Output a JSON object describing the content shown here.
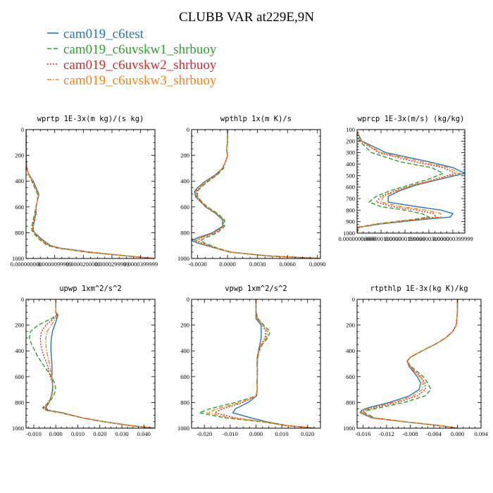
{
  "figure": {
    "title": "CLUBB VAR at229E,9N"
  },
  "legend": [
    {
      "name": "cam019_c6test",
      "color": "#1f77b4",
      "dash": "solid"
    },
    {
      "name": "cam019_c6uvskw1_shrbuoy",
      "color": "#2ca02c",
      "dash": "dashed"
    },
    {
      "name": "cam019_c6uvskw2_shrbuoy",
      "color": "#d62728",
      "dash": "dotted"
    },
    {
      "name": "cam019_c6uvskw3_shrbuoy",
      "color": "#ff7f0e",
      "dash": "dashdot"
    }
  ],
  "chart_data": [
    {
      "type": "line",
      "title": "wprtp  1E-3x(m kg)/(s kg)",
      "xlim": [
        0,
        4.5e-05
      ],
      "xticks": [
        0,
        1e-05,
        2e-05,
        3e-05,
        4e-05
      ],
      "xtick_labels": [
        "0.000000000",
        "0.0000099999",
        "0.0000200000",
        "0.0000299999",
        "0.0000399999"
      ],
      "ylim": [
        1000,
        0
      ],
      "yticks": [
        0,
        200,
        400,
        600,
        800,
        1000
      ],
      "ytick_labels": [
        "0",
        "200",
        "400",
        "600",
        "800",
        "1000"
      ],
      "y": [
        0,
        100,
        200,
        300,
        350,
        400,
        450,
        500,
        550,
        600,
        650,
        700,
        750,
        780,
        800,
        850,
        900,
        920,
        950,
        980,
        1000
      ],
      "series": [
        {
          "values": [
            0,
            0,
            0,
            2e-07,
            1e-06,
            2.5e-06,
            3.5e-06,
            4.5e-06,
            4e-06,
            3.5e-06,
            3.5e-06,
            3e-06,
            2.5e-06,
            2.5e-06,
            3e-06,
            5.5e-06,
            8.5e-06,
            1.2e-05,
            2.2e-05,
            3.5e-05,
            4.5e-05
          ]
        },
        {
          "values": [
            0,
            0,
            0,
            2e-07,
            1e-06,
            2e-06,
            3e-06,
            4e-06,
            4e-06,
            3.5e-06,
            3e-06,
            2.5e-06,
            2e-06,
            2e-06,
            2.5e-06,
            4.5e-06,
            7.5e-06,
            1.1e-05,
            2.1e-05,
            3.5e-05,
            4.5e-05
          ]
        },
        {
          "values": [
            0,
            0,
            0,
            2e-07,
            1e-06,
            2.2e-06,
            3.2e-06,
            4.3e-06,
            4e-06,
            3.5e-06,
            3.3e-06,
            2.8e-06,
            2.3e-06,
            2.3e-06,
            2.8e-06,
            5e-06,
            8e-06,
            1.15e-05,
            2.15e-05,
            3.5e-05,
            4.5e-05
          ]
        },
        {
          "values": [
            0,
            0,
            0,
            2e-07,
            1e-06,
            2.3e-06,
            3.3e-06,
            4.4e-06,
            4e-06,
            3.5e-06,
            3.4e-06,
            2.9e-06,
            2.4e-06,
            2.4e-06,
            2.9e-06,
            5.2e-06,
            8.2e-06,
            1.18e-05,
            2.18e-05,
            3.5e-05,
            4.5e-05
          ]
        }
      ]
    },
    {
      "type": "line",
      "title": "wpthlp  1x(m K)/s",
      "xlim": [
        -0.0036,
        0.0093
      ],
      "xticks": [
        -0.003,
        0,
        0.003,
        0.006,
        0.009
      ],
      "xtick_labels": [
        "-0.0030",
        "0.0000",
        "0.0030",
        "0.0060",
        "0.0090"
      ],
      "ylim": [
        1000,
        0
      ],
      "yticks": [
        0,
        200,
        400,
        600,
        800,
        1000
      ],
      "ytick_labels": [
        "0",
        "200",
        "400",
        "600",
        "800",
        "1000"
      ],
      "y": [
        0,
        100,
        150,
        200,
        250,
        300,
        350,
        400,
        450,
        480,
        520,
        560,
        600,
        650,
        700,
        750,
        800,
        840,
        860,
        880,
        920,
        950,
        980,
        1000
      ],
      "series": [
        {
          "values": [
            0,
            0,
            -0.0001,
            0,
            -0.0002,
            -0.0005,
            -0.0012,
            -0.0022,
            -0.003,
            -0.0033,
            -0.0032,
            -0.0027,
            -0.0022,
            -0.0012,
            -0.0005,
            -0.0005,
            -0.0015,
            -0.003,
            -0.0036,
            -0.003,
            -0.0012,
            0.0002,
            0.004,
            0.0093
          ]
        },
        {
          "values": [
            0,
            0,
            -0.0001,
            0,
            -0.0002,
            -0.0004,
            -0.001,
            -0.0019,
            -0.0027,
            -0.003,
            -0.003,
            -0.0026,
            -0.002,
            -0.001,
            -0.0003,
            -0.0003,
            -0.001,
            -0.0022,
            -0.0027,
            -0.0023,
            -0.001,
            0.0003,
            0.004,
            0.0093
          ]
        },
        {
          "values": [
            0,
            0,
            -0.0001,
            0,
            -0.0002,
            -0.0005,
            -0.0011,
            -0.002,
            -0.0028,
            -0.0031,
            -0.0031,
            -0.0026,
            -0.0021,
            -0.0011,
            -0.0004,
            -0.0004,
            -0.0012,
            -0.0026,
            -0.0031,
            -0.0026,
            -0.0011,
            0.0002,
            0.004,
            0.0093
          ]
        },
        {
          "values": [
            0,
            0,
            -0.0001,
            0,
            -0.0002,
            -0.0005,
            -0.0011,
            -0.0021,
            -0.0029,
            -0.0032,
            -0.0031,
            -0.0027,
            -0.0021,
            -0.0011,
            -0.0004,
            -0.0004,
            -0.0013,
            -0.0028,
            -0.0033,
            -0.0028,
            -0.0011,
            0.0002,
            0.004,
            0.0093
          ]
        }
      ]
    },
    {
      "type": "line",
      "title": "wprcp  1E-3x(m/s) (kg/kg)",
      "xlim": [
        0,
        4.5e-07
      ],
      "xticks": [
        0,
        1e-07,
        2e-07,
        3e-07,
        4e-07
      ],
      "xtick_labels": [
        "0.00000000000",
        "0.000000100000",
        "0.000000199999",
        "0.000000300000",
        "0.000000399999"
      ],
      "ylim": [
        1000,
        100
      ],
      "yticks": [
        100,
        200,
        300,
        400,
        500,
        600,
        700,
        800,
        900,
        1000
      ],
      "ytick_labels": [
        "100",
        "200",
        "300",
        "400",
        "500",
        "600",
        "700",
        "800",
        "900",
        "1000"
      ],
      "y": [
        120,
        200,
        300,
        380,
        430,
        480,
        530,
        580,
        630,
        680,
        730,
        770,
        800,
        830,
        860,
        880,
        920,
        950,
        1000
      ],
      "series": [
        {
          "values": [
            0,
            2e-08,
            1.2e-07,
            3e-07,
            4e-07,
            4.5e-07,
            3.5e-07,
            2.5e-07,
            1.8e-07,
            1.3e-07,
            1.3e-07,
            2.5e-07,
            3.5e-07,
            4e-07,
            3.9e-07,
            2.8e-07,
            1e-07,
            5e-09,
            0
          ]
        },
        {
          "values": [
            0,
            1e-08,
            6e-08,
            1.8e-07,
            3.1e-07,
            3.6e-07,
            3e-07,
            2.2e-07,
            1.4e-07,
            8e-08,
            5e-08,
            1e-07,
            2e-07,
            2.7e-07,
            3e-07,
            2.4e-07,
            8e-08,
            5e-09,
            0
          ]
        },
        {
          "values": [
            0,
            1.5e-08,
            9e-08,
            2.4e-07,
            3.6e-07,
            4.1e-07,
            3.3e-07,
            2.4e-07,
            1.6e-07,
            1e-07,
            8e-08,
            1.5e-07,
            2.5e-07,
            3.2e-07,
            3.3e-07,
            2.5e-07,
            9e-08,
            5e-09,
            0
          ]
        },
        {
          "values": [
            0,
            1.8e-08,
            1e-07,
            2.7e-07,
            3.8e-07,
            4.3e-07,
            3.4e-07,
            2.4e-07,
            1.7e-07,
            1.1e-07,
            1e-07,
            1.9e-07,
            2.9e-07,
            3.5e-07,
            3.5e-07,
            2.6e-07,
            9e-08,
            5e-09,
            0
          ]
        }
      ]
    },
    {
      "type": "line",
      "title": "upwp  1xm^2/s^2",
      "xlim": [
        -0.0135,
        0.045
      ],
      "xticks": [
        -0.01,
        0,
        0.01,
        0.02,
        0.03,
        0.04
      ],
      "xtick_labels": [
        "-0.010",
        "0.000",
        "0.010",
        "0.020",
        "0.030",
        "0.040"
      ],
      "ylim": [
        1000,
        0
      ],
      "yticks": [
        0,
        200,
        400,
        600,
        800,
        1000
      ],
      "ytick_labels": [
        "0",
        "200",
        "400",
        "600",
        "800",
        "1000"
      ],
      "y": [
        0,
        100,
        120,
        150,
        200,
        250,
        300,
        350,
        400,
        450,
        500,
        550,
        600,
        650,
        700,
        750,
        800,
        840,
        860,
        880,
        920,
        950,
        980,
        1000
      ],
      "series": [
        {
          "values": [
            0,
            0,
            0.001,
            0.0005,
            -0.0005,
            -0.0015,
            -0.002,
            -0.0022,
            -0.0022,
            -0.002,
            -0.0018,
            -0.0017,
            -0.0018,
            -0.0015,
            -0.0015,
            -0.002,
            -0.003,
            -0.0045,
            -0.0035,
            0.003,
            0.012,
            0.022,
            0.034,
            0.045
          ]
        },
        {
          "values": [
            0,
            0,
            0.0005,
            -0.002,
            -0.008,
            -0.0115,
            -0.012,
            -0.011,
            -0.0095,
            -0.008,
            -0.006,
            -0.004,
            -0.002,
            -0.0005,
            0,
            -0.001,
            -0.003,
            -0.006,
            -0.005,
            0.002,
            0.012,
            0.022,
            0.034,
            0.045
          ]
        },
        {
          "values": [
            0,
            0,
            0.0005,
            -0.001,
            -0.0045,
            -0.0065,
            -0.007,
            -0.0068,
            -0.0062,
            -0.0052,
            -0.004,
            -0.0032,
            -0.0025,
            -0.0015,
            -0.0012,
            -0.0018,
            -0.0035,
            -0.0055,
            -0.0045,
            0.0025,
            0.012,
            0.022,
            0.034,
            0.045
          ]
        },
        {
          "values": [
            0,
            0,
            0.0008,
            0,
            -0.002,
            -0.004,
            -0.0045,
            -0.0045,
            -0.0042,
            -0.0035,
            -0.0028,
            -0.0024,
            -0.002,
            -0.0014,
            -0.0012,
            -0.0018,
            -0.0032,
            -0.005,
            -0.004,
            0.0028,
            0.012,
            0.022,
            0.034,
            0.045
          ]
        }
      ]
    },
    {
      "type": "line",
      "title": "vpwp  1xm^2/s^2",
      "xlim": [
        -0.025,
        0.025
      ],
      "xticks": [
        -0.02,
        -0.01,
        0,
        0.01,
        0.02
      ],
      "xtick_labels": [
        "-0.020",
        "-0.010",
        "0.000",
        "0.010",
        "0.020"
      ],
      "ylim": [
        1000,
        0
      ],
      "yticks": [
        0,
        200,
        400,
        600,
        800,
        1000
      ],
      "ytick_labels": [
        "0",
        "200",
        "400",
        "600",
        "800",
        "1000"
      ],
      "y": [
        0,
        100,
        150,
        200,
        250,
        300,
        350,
        400,
        450,
        500,
        550,
        600,
        650,
        700,
        750,
        800,
        850,
        880,
        920,
        950,
        980,
        1000
      ],
      "series": [
        {
          "values": [
            0,
            0,
            0,
            0.002,
            0.002,
            0.002,
            0.0015,
            0.001,
            0.0005,
            0.0004,
            0.0005,
            0.0005,
            0.0004,
            0.0005,
            0.0002,
            -0.003,
            -0.008,
            -0.009,
            -0.002,
            0.004,
            0.012,
            0.023
          ]
        },
        {
          "values": [
            0,
            0,
            0.0008,
            0.003,
            0.0055,
            0.0045,
            0.0025,
            0.0012,
            0.0007,
            0.0005,
            0.0006,
            0.0005,
            0.0004,
            0.0005,
            0,
            -0.008,
            -0.018,
            -0.022,
            -0.012,
            0.002,
            0.012,
            0.023
          ]
        },
        {
          "values": [
            0,
            0,
            0.0005,
            0.0025,
            0.0038,
            0.0035,
            0.002,
            0.0011,
            0.0006,
            0.0005,
            0.0005,
            0.0005,
            0.0004,
            0.0005,
            0.0001,
            -0.005,
            -0.013,
            -0.016,
            -0.008,
            0.003,
            0.012,
            0.023
          ]
        },
        {
          "values": [
            0,
            0,
            0.0006,
            0.0027,
            0.0045,
            0.004,
            0.0022,
            0.0012,
            0.0006,
            0.0005,
            0.0005,
            0.0005,
            0.0004,
            0.0005,
            0.0001,
            -0.006,
            -0.015,
            -0.019,
            -0.01,
            0.003,
            0.012,
            0.023
          ]
        }
      ]
    },
    {
      "type": "line",
      "title": "rtpthlp  1E-3x(kg K)/kg",
      "xlim": [
        -0.017,
        0.004
      ],
      "xticks": [
        -0.016,
        -0.012,
        -0.008,
        -0.004,
        0,
        0.004
      ],
      "xtick_labels": [
        "-0.016",
        "-0.012",
        "-0.008",
        "-0.004",
        "0.000",
        "0.004"
      ],
      "ylim": [
        1000,
        0
      ],
      "yticks": [
        0,
        200,
        400,
        600,
        800,
        1000
      ],
      "ytick_labels": [
        "0",
        "200",
        "400",
        "600",
        "800",
        "1000"
      ],
      "y": [
        0,
        100,
        200,
        250,
        300,
        350,
        400,
        450,
        480,
        520,
        560,
        600,
        650,
        700,
        750,
        800,
        840,
        860,
        880,
        920,
        950,
        980,
        1000
      ],
      "series": [
        {
          "values": [
            0,
            0,
            -0.0002,
            -0.0008,
            -0.002,
            -0.0038,
            -0.006,
            -0.008,
            -0.0085,
            -0.0082,
            -0.0075,
            -0.0068,
            -0.0062,
            -0.0065,
            -0.0082,
            -0.0115,
            -0.015,
            -0.0162,
            -0.0165,
            -0.0145,
            -0.009,
            -0.003,
            0
          ]
        },
        {
          "values": [
            0,
            0,
            -0.0002,
            -0.0008,
            -0.002,
            -0.0038,
            -0.006,
            -0.008,
            -0.0085,
            -0.0079,
            -0.0068,
            -0.0058,
            -0.005,
            -0.0045,
            -0.0055,
            -0.009,
            -0.013,
            -0.0152,
            -0.0158,
            -0.014,
            -0.009,
            -0.003,
            0
          ]
        },
        {
          "values": [
            0,
            0,
            -0.0002,
            -0.0008,
            -0.002,
            -0.0038,
            -0.006,
            -0.008,
            -0.0085,
            -0.008,
            -0.0071,
            -0.0062,
            -0.0055,
            -0.0054,
            -0.0068,
            -0.0102,
            -0.014,
            -0.0157,
            -0.0161,
            -0.0142,
            -0.009,
            -0.003,
            0
          ]
        },
        {
          "values": [
            0,
            0,
            -0.0002,
            -0.0008,
            -0.002,
            -0.0038,
            -0.006,
            -0.008,
            -0.0085,
            -0.0081,
            -0.0073,
            -0.0064,
            -0.0058,
            -0.006,
            -0.0075,
            -0.0108,
            -0.0145,
            -0.0159,
            -0.0163,
            -0.0143,
            -0.009,
            -0.003,
            0
          ]
        }
      ]
    }
  ]
}
